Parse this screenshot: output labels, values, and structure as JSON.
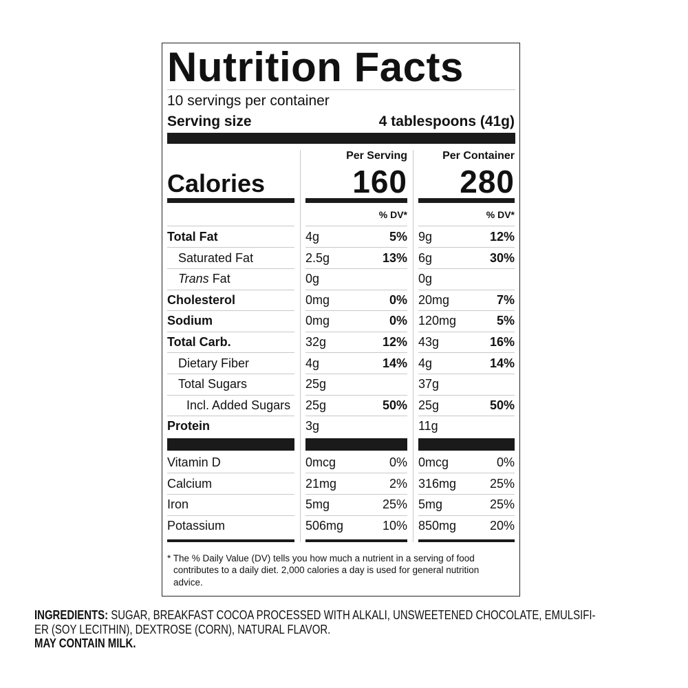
{
  "title": "Nutrition Facts",
  "servings": "10 servings per container",
  "serving_size": {
    "label": "Serving size",
    "value": "4 tablespoons (41g)"
  },
  "columns": [
    "Per Serving",
    "Per Container"
  ],
  "calories": {
    "label": "Calories",
    "values": [
      "160",
      "280"
    ]
  },
  "dv_header": "% DV*",
  "nutrients": [
    {
      "label": "Total Fat",
      "bold": true,
      "indent": 0,
      "serving": [
        "4g",
        "5%"
      ],
      "container": [
        "9g",
        "12%"
      ]
    },
    {
      "label": "Saturated Fat",
      "bold": false,
      "indent": 1,
      "serving": [
        "2.5g",
        "13%"
      ],
      "container": [
        "6g",
        "30%"
      ]
    },
    {
      "label_italic": "Trans",
      "label": "Fat",
      "bold": false,
      "indent": 1,
      "serving": [
        "0g",
        null
      ],
      "container": [
        "0g",
        null
      ]
    },
    {
      "label": "Cholesterol",
      "bold": true,
      "indent": 0,
      "serving": [
        "0mg",
        "0%"
      ],
      "container": [
        "20mg",
        "7%"
      ]
    },
    {
      "label": "Sodium",
      "bold": true,
      "indent": 0,
      "serving": [
        "0mg",
        "0%"
      ],
      "container": [
        "120mg",
        "5%"
      ]
    },
    {
      "label": "Total Carb.",
      "bold": true,
      "indent": 0,
      "serving": [
        "32g",
        "12%"
      ],
      "container": [
        "43g",
        "16%"
      ]
    },
    {
      "label": "Dietary Fiber",
      "bold": false,
      "indent": 1,
      "serving": [
        "4g",
        "14%"
      ],
      "container": [
        "4g",
        "14%"
      ]
    },
    {
      "label": "Total Sugars",
      "bold": false,
      "indent": 1,
      "serving": [
        "25g",
        null
      ],
      "container": [
        "37g",
        null
      ]
    },
    {
      "label": "Incl. Added Sugars",
      "bold": false,
      "indent": 2,
      "serving": [
        "25g",
        "50%"
      ],
      "container": [
        "25g",
        "50%"
      ]
    },
    {
      "label": "Protein",
      "bold": true,
      "indent": 0,
      "serving": [
        "3g",
        null
      ],
      "container": [
        "11g",
        null
      ]
    }
  ],
  "vitamins": [
    {
      "label": "Vitamin D",
      "serving": [
        "0mcg",
        "0%"
      ],
      "container": [
        "0mcg",
        "0%"
      ]
    },
    {
      "label": "Calcium",
      "serving": [
        "21mg",
        "2%"
      ],
      "container": [
        "316mg",
        "25%"
      ]
    },
    {
      "label": "Iron",
      "serving": [
        "5mg",
        "25%"
      ],
      "container": [
        "5mg",
        "25%"
      ]
    },
    {
      "label": "Potassium",
      "serving": [
        "506mg",
        "10%"
      ],
      "container": [
        "850mg",
        "20%"
      ]
    }
  ],
  "footnote": [
    "* The % Daily Value (DV) tells you how much a nutrient in a serving of food",
    "contributes to a daily diet. 2,000 calories a day is used for general nutrition",
    "advice."
  ],
  "ingredients": {
    "label": "INGREDIENTS:",
    "lines": [
      " SUGAR, BREAKFAST COCOA PROCESSED WITH ALKALI, UNSWEETENED CHOCOLATE, EMULSIFI-",
      "ER (SOY LECITHIN), DEXTROSE (CORN), NATURAL FLAVOR."
    ]
  },
  "allergen": "MAY CONTAIN MILK."
}
